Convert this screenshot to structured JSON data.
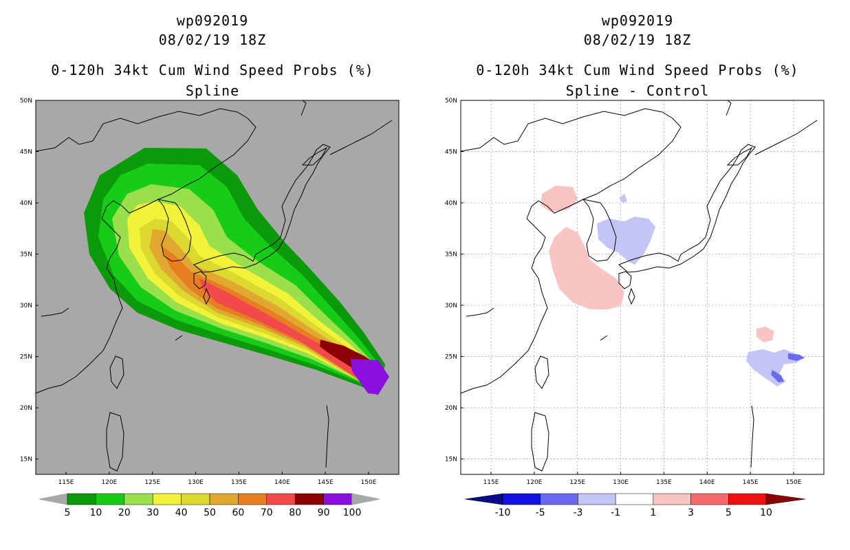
{
  "panels": [
    {
      "storm_id": "wp092019",
      "datetime": "08/02/19 18Z",
      "title": "0-120h 34kt Cum Wind Speed Probs (%)",
      "subtitle": "Spline",
      "background": "#a8a8a8",
      "colorbar": {
        "labels": [
          "5",
          "10",
          "20",
          "30",
          "40",
          "50",
          "60",
          "70",
          "80",
          "90",
          "100"
        ],
        "colors": [
          "#0a9a0a",
          "#17cc17",
          "#99e04a",
          "#f2f238",
          "#dcd830",
          "#e0a830",
          "#e67e22",
          "#f24a4a",
          "#8b0000",
          "#8a10e0"
        ]
      }
    },
    {
      "storm_id": "wp092019",
      "datetime": "08/02/19 18Z",
      "title": "0-120h 34kt Cum Wind Speed Probs (%)",
      "subtitle": "Spline - Control",
      "background": "#ffffff",
      "colorbar": {
        "labels": [
          "-10",
          "-5",
          "-3",
          "-1",
          "1",
          "3",
          "5",
          "10"
        ],
        "colors": [
          "#1010e0",
          "#6a6af0",
          "#c4c4f6",
          "#ffffff",
          "#f8c4c4",
          "#f26a6a",
          "#f01010"
        ],
        "end_colors": [
          "#0a0a88",
          "#8b0000"
        ]
      }
    }
  ],
  "map": {
    "lat_labels": [
      "50N",
      "45N",
      "40N",
      "35N",
      "30N",
      "25N",
      "20N",
      "15N"
    ],
    "lon_labels": [
      "115E",
      "120E",
      "125E",
      "130E",
      "135E",
      "140E",
      "145E",
      "150E"
    ]
  }
}
